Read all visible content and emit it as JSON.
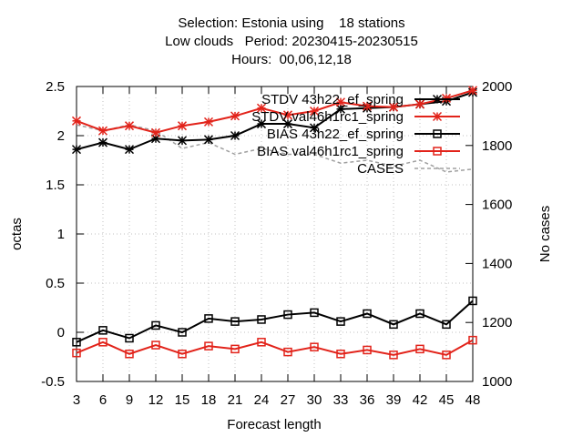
{
  "title_lines": [
    "Selection: Estonia using    18 stations",
    "Low clouds   Period: 20230415-20230515",
    "Hours:  00,06,12,18"
  ],
  "chart_data": {
    "type": "line",
    "xlabel": "Forecast length",
    "ylabel": "octas",
    "y2label": "No cases",
    "x": [
      3,
      6,
      9,
      12,
      15,
      18,
      21,
      24,
      27,
      30,
      33,
      36,
      39,
      42,
      45,
      48
    ],
    "xlim": [
      3,
      48
    ],
    "ylim": [
      -0.5,
      2.5
    ],
    "y2lim": [
      1000,
      2000
    ],
    "yticks": [
      "-0.5",
      "0",
      "0.5",
      "1",
      "1.5",
      "2",
      "2.5"
    ],
    "y2ticks": [
      "1000",
      "1200",
      "1400",
      "1600",
      "1800",
      "2000"
    ],
    "xticks": [
      "3",
      "6",
      "9",
      "12",
      "15",
      "18",
      "21",
      "24",
      "27",
      "30",
      "33",
      "36",
      "39",
      "42",
      "45",
      "48"
    ],
    "legend_position": "top-right",
    "grid": true,
    "series": [
      {
        "name": "STDV 43h22_ef_spring",
        "color": "#000000",
        "marker": "asterisk",
        "axis": "left",
        "values": [
          1.86,
          1.93,
          1.86,
          1.97,
          1.95,
          1.96,
          2.0,
          2.12,
          2.12,
          2.08,
          2.27,
          2.28,
          2.29,
          2.32,
          2.35,
          2.44
        ]
      },
      {
        "name": "STDV val46h1rc1_spring",
        "color": "#e2231a",
        "marker": "asterisk",
        "axis": "left",
        "values": [
          2.15,
          2.05,
          2.1,
          2.03,
          2.1,
          2.14,
          2.2,
          2.28,
          2.21,
          2.25,
          2.34,
          2.3,
          2.29,
          2.32,
          2.38,
          2.46
        ]
      },
      {
        "name": "BIAS 43h22_ef_spring",
        "color": "#000000",
        "marker": "square",
        "axis": "left",
        "values": [
          -0.1,
          0.02,
          -0.06,
          0.07,
          0.0,
          0.14,
          0.11,
          0.13,
          0.18,
          0.2,
          0.11,
          0.19,
          0.08,
          0.19,
          0.08,
          0.32
        ]
      },
      {
        "name": "BIAS val46h1rc1_spring",
        "color": "#e2231a",
        "marker": "square",
        "axis": "left",
        "values": [
          -0.21,
          -0.1,
          -0.22,
          -0.13,
          -0.22,
          -0.14,
          -0.17,
          -0.1,
          -0.2,
          -0.15,
          -0.22,
          -0.18,
          -0.23,
          -0.17,
          -0.23,
          -0.08
        ]
      },
      {
        "name": "CASES",
        "color": "#a0a0a0",
        "marker": "none",
        "dash": true,
        "axis": "right",
        "values": [
          1870,
          1850,
          1870,
          1850,
          1790,
          1810,
          1770,
          1790,
          1770,
          1770,
          1740,
          1750,
          1730,
          1750,
          1710,
          1720
        ]
      }
    ]
  }
}
